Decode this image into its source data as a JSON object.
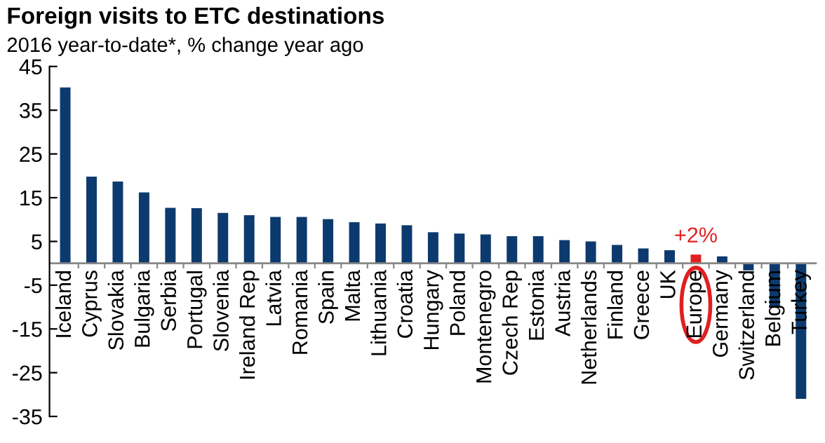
{
  "chart_data": {
    "type": "bar",
    "title": "Foreign visits to ETC destinations",
    "subtitle": "2016 year-to-date*, % change year ago",
    "categories": [
      "Iceland",
      "Cyprus",
      "Slovakia",
      "Bulgaria",
      "Serbia",
      "Portugal",
      "Slovenia",
      "Ireland Rep",
      "Latvia",
      "Romania",
      "Spain",
      "Malta",
      "Lithuania",
      "Croatia",
      "Hungary",
      "Poland",
      "Montenegro",
      "Czech Rep",
      "Estonia",
      "Austria",
      "Netherlands",
      "Finland",
      "Greece",
      "UK",
      "Europe",
      "Germany",
      "Switzerland",
      "Belgium",
      "Turkey"
    ],
    "values": [
      40.2,
      19.8,
      18.7,
      16.2,
      12.7,
      12.6,
      11.5,
      11.0,
      10.6,
      10.6,
      10.1,
      9.4,
      9.1,
      8.7,
      7.1,
      6.8,
      6.6,
      6.2,
      6.2,
      5.3,
      5.0,
      4.2,
      3.4,
      3.0,
      2,
      1.6,
      -1.6,
      -10,
      -31
    ],
    "colors": [
      "#0d3a6e",
      "#0d3a6e",
      "#0d3a6e",
      "#0d3a6e",
      "#0d3a6e",
      "#0d3a6e",
      "#0d3a6e",
      "#0d3a6e",
      "#0d3a6e",
      "#0d3a6e",
      "#0d3a6e",
      "#0d3a6e",
      "#0d3a6e",
      "#0d3a6e",
      "#0d3a6e",
      "#0d3a6e",
      "#0d3a6e",
      "#0d3a6e",
      "#0d3a6e",
      "#0d3a6e",
      "#0d3a6e",
      "#0d3a6e",
      "#0d3a6e",
      "#0d3a6e",
      "#e02020",
      "#0d3a6e",
      "#0d3a6e",
      "#0d3a6e",
      "#0d3a6e"
    ],
    "ylim": [
      -35,
      45
    ],
    "yticks": [
      -35,
      -25,
      -15,
      -5,
      5,
      15,
      25,
      35,
      45
    ],
    "grid": false,
    "annotations": [
      {
        "text": "+2%",
        "x": "Europe",
        "y": 2
      }
    ]
  }
}
